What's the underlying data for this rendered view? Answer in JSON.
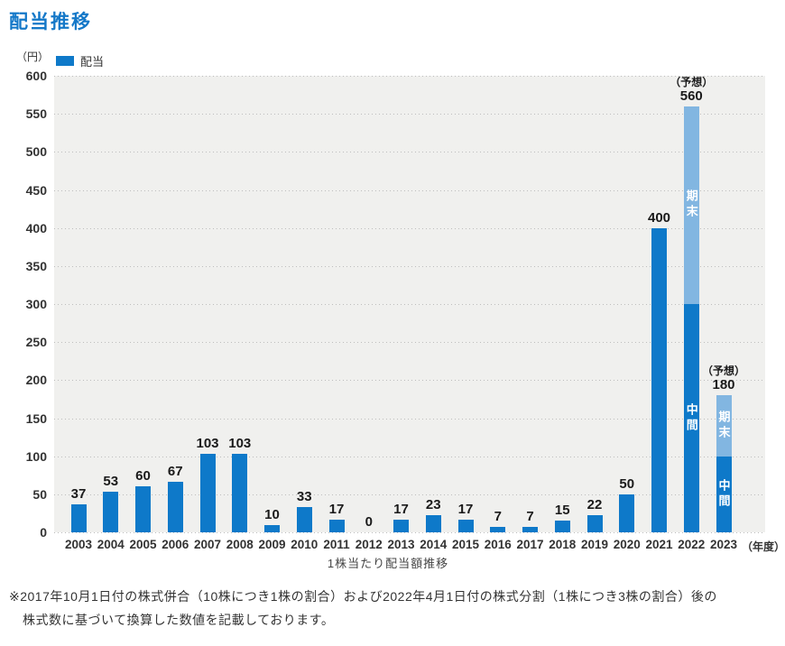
{
  "page": {
    "title": "配当推移"
  },
  "legend": {
    "label": "配当"
  },
  "axis": {
    "y_unit": "（円）",
    "x_unit": "（年度）",
    "caption": "1株当たり配当額推移"
  },
  "colors": {
    "bar": "#0e79c9",
    "bar_forecast": "#82b6e1",
    "title": "#1478c8",
    "plot_bg": "#f0f0ee",
    "gridline": "#bdbdbd"
  },
  "footnote": {
    "line1": "※2017年10月1日付の株式併合（10株につき1株の割合）および2022年4月1日付の株式分割（1株につき3株の割合）後の",
    "line2": "株式数に基づいて換算した数値を記載しております。"
  },
  "chart_data": {
    "type": "bar",
    "title": "配当推移",
    "ylabel": "円",
    "xlabel": "年度",
    "ylim": [
      0,
      600
    ],
    "ytick_step": 50,
    "grid": true,
    "legend_position": "top-left",
    "legend_entries": [
      "配当"
    ],
    "categories": [
      "2003",
      "2004",
      "2005",
      "2006",
      "2007",
      "2008",
      "2009",
      "2010",
      "2011",
      "2012",
      "2013",
      "2014",
      "2015",
      "2016",
      "2017",
      "2018",
      "2019",
      "2020",
      "2021",
      "2022",
      "2023"
    ],
    "values": [
      37,
      53,
      60,
      67,
      103,
      103,
      10,
      33,
      17,
      0,
      17,
      23,
      17,
      7,
      7,
      15,
      22,
      50,
      400,
      560,
      180
    ],
    "forecast_label": "（予想）",
    "stacked_bars": {
      "2022": [
        {
          "name": "中間",
          "value": 300
        },
        {
          "name": "期末",
          "value": 260
        }
      ],
      "2023": [
        {
          "name": "中間",
          "value": 100
        },
        {
          "name": "期末",
          "value": 80
        }
      ]
    }
  }
}
